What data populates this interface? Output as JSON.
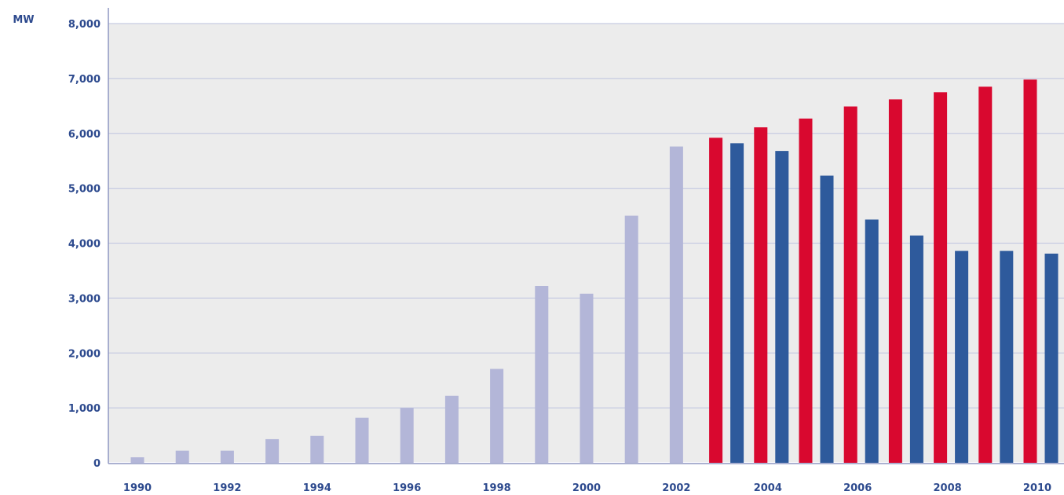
{
  "chart_data": {
    "type": "bar",
    "ylabel": "MW",
    "ylim": [
      0,
      8000
    ],
    "yticks": [
      0,
      1000,
      2000,
      3000,
      4000,
      5000,
      6000,
      7000,
      8000
    ],
    "ytick_labels": [
      "0",
      "1,000",
      "2,000",
      "3,000",
      "4,000",
      "5,000",
      "6,000",
      "7,000",
      "8,000"
    ],
    "categories": [
      1990,
      1991,
      1992,
      1993,
      1994,
      1995,
      1996,
      1997,
      1998,
      1999,
      2000,
      2001,
      2002,
      2003,
      2004,
      2005,
      2006,
      2007,
      2008,
      2009,
      2010
    ],
    "xtick_labels": [
      "1990",
      "1992",
      "1994",
      "1996",
      "1998",
      "2000",
      "2002",
      "2004",
      "2006",
      "2008",
      "2010"
    ],
    "series": [
      {
        "color": "#b3b6d8",
        "values": [
          100,
          220,
          220,
          430,
          490,
          820,
          1000,
          1220,
          1710,
          3220,
          3080,
          4500,
          5760,
          null,
          null,
          null,
          null,
          null,
          null,
          null,
          null
        ]
      },
      {
        "color": "#d9082f",
        "values": [
          null,
          null,
          null,
          null,
          null,
          null,
          null,
          null,
          null,
          null,
          null,
          null,
          null,
          5920,
          6110,
          6270,
          6490,
          6620,
          6750,
          6850,
          6980
        ]
      },
      {
        "color": "#2e5a9c",
        "values": [
          null,
          null,
          null,
          null,
          null,
          null,
          null,
          null,
          null,
          null,
          null,
          null,
          null,
          5820,
          5680,
          5230,
          4430,
          4140,
          3860,
          3860,
          3810
        ]
      }
    ],
    "grid": true,
    "legend": "none",
    "colors": {
      "axis_text": "#2d4a8e",
      "plot_bg": "#ececec",
      "grid": "#c7cbe2",
      "axis_line": "#8f97c2"
    }
  }
}
